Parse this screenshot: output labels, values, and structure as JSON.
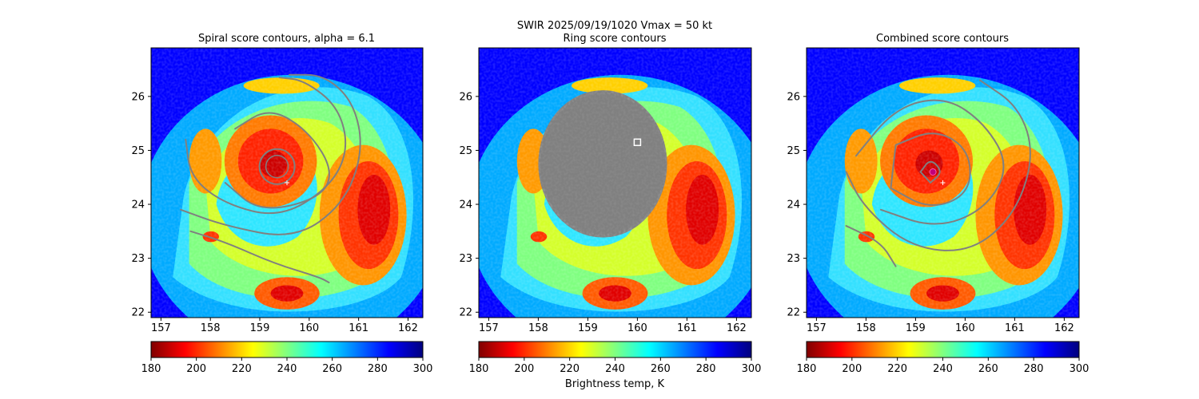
{
  "figure": {
    "suptitle_line1": "SWIR  2025/09/19/1020    Vmax = 50 kt",
    "colorbar_label": "Brightness temp, K"
  },
  "panels": [
    {
      "title": "Spiral score contours, alpha =  6.1"
    },
    {
      "title": "Ring score contours"
    },
    {
      "title": "Combined score contours"
    }
  ],
  "colors": {
    "contour": "#808080",
    "best_track_marker": "#ffffff",
    "center_marker": "#c0007a",
    "ring_mask": "#808080"
  },
  "chart_data": [
    {
      "type": "heatmap",
      "title": "Spiral score contours, alpha =  6.1",
      "xlabel": "",
      "ylabel": "",
      "xlim": [
        156.8,
        162.3
      ],
      "ylim": [
        21.9,
        26.9
      ],
      "xticks": [
        157,
        158,
        159,
        160,
        161,
        162
      ],
      "yticks": [
        22,
        23,
        24,
        25,
        26
      ],
      "colormap": "jet_r",
      "clim": [
        180,
        300
      ],
      "colorbar_ticks": [
        180,
        200,
        220,
        240,
        260,
        280,
        300
      ],
      "storm_center": [
        159.35,
        24.7
      ],
      "best_track_marker": [
        159.55,
        24.4
      ],
      "contours": [
        [
          [
            159.35,
            24.7
          ],
          [
            159.4,
            24.95
          ],
          [
            159.5,
            24.35
          ]
        ],
        [
          [
            158.5,
            25.4
          ],
          [
            159.2,
            25.8
          ],
          [
            160.0,
            25.35
          ],
          [
            160.5,
            24.6
          ],
          [
            160.2,
            24.1
          ],
          [
            159.0,
            23.85
          ],
          [
            158.3,
            24.4
          ]
        ],
        [
          [
            157.5,
            25.2
          ],
          [
            157.6,
            24.5
          ],
          [
            158.3,
            24.0
          ],
          [
            159.4,
            23.75
          ],
          [
            160.4,
            24.3
          ],
          [
            160.8,
            25.0
          ],
          [
            160.6,
            25.8
          ],
          [
            159.9,
            26.3
          ],
          [
            159.4,
            26.35
          ]
        ],
        [
          [
            157.4,
            23.9
          ],
          [
            158.3,
            23.6
          ],
          [
            159.7,
            23.35
          ],
          [
            160.7,
            24.0
          ],
          [
            161.1,
            25.0
          ],
          [
            160.9,
            25.9
          ],
          [
            160.3,
            26.4
          ],
          [
            159.6,
            26.4
          ]
        ],
        [
          [
            157.6,
            23.5
          ],
          [
            158.3,
            23.3
          ],
          [
            159.3,
            22.9
          ],
          [
            160.2,
            22.65
          ],
          [
            160.4,
            22.55
          ]
        ]
      ]
    },
    {
      "type": "heatmap",
      "title": "Ring score contours",
      "xlim": [
        156.8,
        162.3
      ],
      "ylim": [
        21.9,
        26.9
      ],
      "xticks": [
        157,
        158,
        159,
        160,
        161,
        162
      ],
      "yticks": [
        22,
        23,
        24,
        25,
        26
      ],
      "colormap": "jet_r",
      "clim": [
        180,
        300
      ],
      "colorbar_ticks": [
        180,
        200,
        220,
        240,
        260,
        280,
        300
      ],
      "storm_center": [
        159.35,
        24.7
      ],
      "ring_mask_center": [
        159.3,
        24.75
      ],
      "ring_mask_radius_deg": 1.3,
      "square_marker": [
        160.0,
        25.15
      ]
    },
    {
      "type": "heatmap",
      "title": "Combined score contours",
      "xlim": [
        156.8,
        162.3
      ],
      "ylim": [
        21.9,
        26.9
      ],
      "xticks": [
        157,
        158,
        159,
        160,
        161,
        162
      ],
      "yticks": [
        22,
        23,
        24,
        25,
        26
      ],
      "colormap": "jet_r",
      "clim": [
        180,
        300
      ],
      "colorbar_ticks": [
        180,
        200,
        220,
        240,
        260,
        280,
        300
      ],
      "storm_center": [
        159.35,
        24.7
      ],
      "best_track_marker": [
        159.55,
        24.4
      ],
      "center_marker": [
        159.35,
        24.6
      ],
      "contours": [
        [
          [
            159.1,
            24.6
          ],
          [
            159.3,
            24.85
          ],
          [
            159.55,
            24.6
          ],
          [
            159.3,
            24.4
          ]
        ],
        [
          [
            158.6,
            25.1
          ],
          [
            159.4,
            25.4
          ],
          [
            160.1,
            25.0
          ],
          [
            160.1,
            24.2
          ],
          [
            159.3,
            23.9
          ],
          [
            158.5,
            24.3
          ]
        ],
        [
          [
            157.8,
            24.9
          ],
          [
            158.6,
            25.8
          ],
          [
            159.6,
            26.0
          ],
          [
            160.4,
            25.5
          ],
          [
            160.9,
            24.7
          ],
          [
            160.4,
            23.9
          ],
          [
            159.4,
            23.55
          ],
          [
            158.3,
            23.9
          ]
        ],
        [
          [
            157.6,
            24.6
          ],
          [
            157.95,
            23.95
          ],
          [
            158.9,
            23.2
          ],
          [
            160.1,
            23.1
          ],
          [
            161.0,
            23.8
          ],
          [
            161.4,
            24.9
          ],
          [
            161.1,
            25.8
          ],
          [
            160.3,
            26.3
          ]
        ],
        [
          [
            157.6,
            23.6
          ],
          [
            158.3,
            23.3
          ],
          [
            158.6,
            22.85
          ]
        ]
      ]
    }
  ]
}
